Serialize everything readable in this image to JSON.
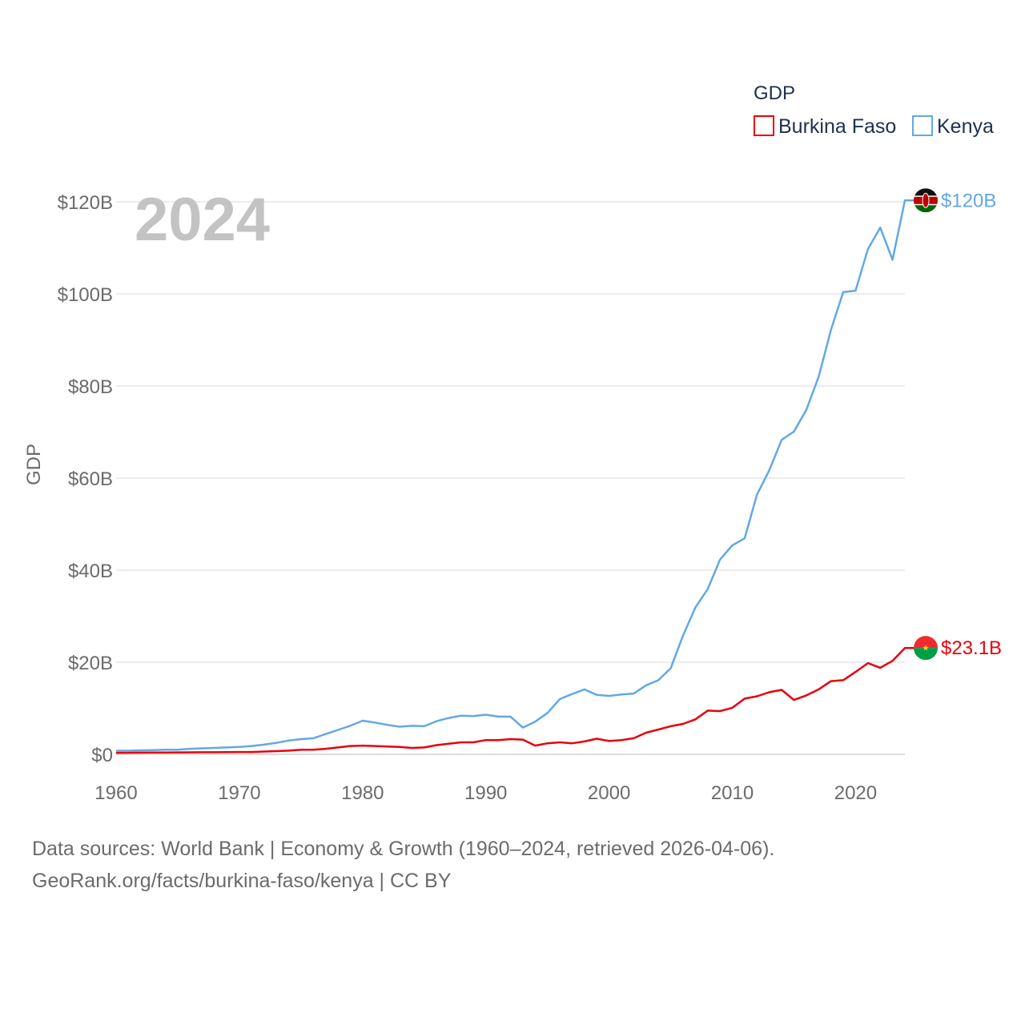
{
  "chart_data": {
    "type": "line",
    "legend_title": "GDP",
    "ylabel": "GDP",
    "year_label": "2024",
    "ylim": [
      0,
      120000000000
    ],
    "y_ticks": [
      {
        "value": 0,
        "label": "$0"
      },
      {
        "value": 20000000000,
        "label": "$20B"
      },
      {
        "value": 40000000000,
        "label": "$40B"
      },
      {
        "value": 60000000000,
        "label": "$60B"
      },
      {
        "value": 80000000000,
        "label": "$80B"
      },
      {
        "value": 100000000000,
        "label": "$100B"
      },
      {
        "value": 120000000000,
        "label": "$120B"
      }
    ],
    "xlim": [
      1960,
      2024
    ],
    "x_ticks": [
      {
        "value": 1960,
        "label": "1960"
      },
      {
        "value": 1970,
        "label": "1970"
      },
      {
        "value": 1980,
        "label": "1980"
      },
      {
        "value": 1990,
        "label": "1990"
      },
      {
        "value": 2000,
        "label": "2000"
      },
      {
        "value": 2010,
        "label": "2010"
      },
      {
        "value": 2020,
        "label": "2020"
      }
    ],
    "x": [
      1960,
      1961,
      1962,
      1963,
      1964,
      1965,
      1966,
      1967,
      1968,
      1969,
      1970,
      1971,
      1972,
      1973,
      1974,
      1975,
      1976,
      1977,
      1978,
      1979,
      1980,
      1981,
      1982,
      1983,
      1984,
      1985,
      1986,
      1987,
      1988,
      1989,
      1990,
      1991,
      1992,
      1993,
      1994,
      1995,
      1996,
      1997,
      1998,
      1999,
      2000,
      2001,
      2002,
      2003,
      2004,
      2005,
      2006,
      2007,
      2008,
      2009,
      2010,
      2011,
      2012,
      2013,
      2014,
      2015,
      2016,
      2017,
      2018,
      2019,
      2020,
      2021,
      2022,
      2023,
      2024
    ],
    "series": [
      {
        "name": "Burkina Faso",
        "color": "#e8000b",
        "end_label": "$23.1B",
        "flag": "burkina-faso-flag",
        "values": [
          0.33,
          0.35,
          0.37,
          0.38,
          0.39,
          0.42,
          0.43,
          0.45,
          0.46,
          0.48,
          0.5,
          0.5,
          0.6,
          0.7,
          0.8,
          1.0,
          1.0,
          1.2,
          1.5,
          1.8,
          1.9,
          1.8,
          1.7,
          1.6,
          1.4,
          1.5,
          2.0,
          2.3,
          2.6,
          2.6,
          3.1,
          3.1,
          3.3,
          3.2,
          1.9,
          2.4,
          2.6,
          2.4,
          2.8,
          3.4,
          2.9,
          3.1,
          3.5,
          4.7,
          5.4,
          6.1,
          6.6,
          7.6,
          9.5,
          9.4,
          10.1,
          12.1,
          12.6,
          13.5,
          14.0,
          11.8,
          12.8,
          14.1,
          15.9,
          16.1,
          17.9,
          19.8,
          18.8,
          20.3,
          23.1
        ]
      },
      {
        "name": "Kenya",
        "color": "#63a8e6",
        "end_label": "$120B",
        "flag": "kenya-flag",
        "values": [
          0.79,
          0.79,
          0.87,
          0.93,
          0.99,
          1.0,
          1.2,
          1.3,
          1.4,
          1.5,
          1.6,
          1.8,
          2.1,
          2.5,
          3.0,
          3.3,
          3.5,
          4.4,
          5.3,
          6.2,
          7.3,
          6.9,
          6.4,
          6.0,
          6.2,
          6.1,
          7.2,
          7.9,
          8.4,
          8.3,
          8.6,
          8.2,
          8.2,
          5.8,
          7.1,
          9.0,
          12.0,
          13.1,
          14.1,
          12.9,
          12.7,
          13.0,
          13.2,
          15.0,
          16.1,
          18.7,
          25.8,
          31.9,
          35.9,
          42.3,
          45.4,
          46.9,
          56.4,
          61.7,
          68.3,
          70.1,
          74.8,
          82.0,
          92.2,
          100.4,
          100.7,
          109.7,
          114.4,
          107.4,
          120.3
        ]
      }
    ]
  },
  "legend": {
    "items": [
      {
        "label": "Burkina Faso",
        "color": "#e8000b"
      },
      {
        "label": "Kenya",
        "color": "#63a8e6"
      }
    ]
  },
  "footer": {
    "line1": "Data sources: World Bank | Economy & Growth (1960–2024, retrieved 2026-04-06).",
    "line2": "GeoRank.org/facts/burkina-faso/kenya | CC BY"
  }
}
